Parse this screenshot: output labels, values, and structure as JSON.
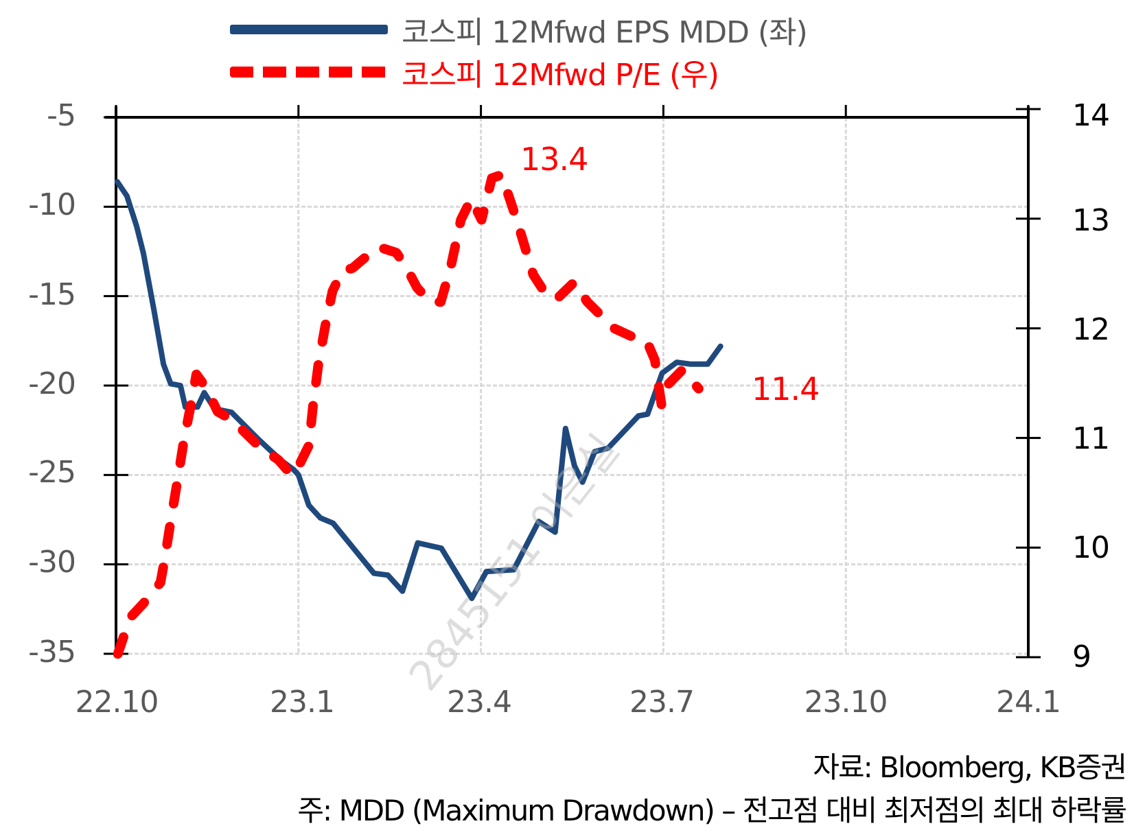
{
  "legend": {
    "series1_label": "코스피 12Mfwd EPS MDD (좌)",
    "series2_label": "코스피 12Mfwd P/E (우)"
  },
  "axes": {
    "left_ticks": [
      "-5",
      "-10",
      "-15",
      "-20",
      "-25",
      "-30",
      "-35"
    ],
    "right_ticks": [
      "14",
      "13",
      "12",
      "11",
      "10",
      "9"
    ],
    "bottom_ticks": [
      "22.10",
      "23.1",
      "23.4",
      "23.7",
      "23.10",
      "24.1"
    ]
  },
  "annotations": {
    "peak_label": "13.4",
    "last_label": "11.4"
  },
  "footnotes": {
    "source": "자료: Bloomberg, KB증권",
    "note": "주: MDD (Maximum Drawdown) – 전고점 대비 최저점의 최대 하락률"
  },
  "watermark": "2845151 이은실",
  "colors": {
    "mdd_line": "#1f497d",
    "pe_line": "#ff0000",
    "axis": "#000000",
    "grid": "#d9d9d9"
  },
  "chart_data": {
    "type": "line",
    "title": "",
    "xlabel": "",
    "ylabel": "",
    "x_ticks": [
      "22.10",
      "23.1",
      "23.4",
      "23.7",
      "23.10",
      "24.1"
    ],
    "x_unit": "months since 2022-10",
    "xlim": [
      0,
      15
    ],
    "ylim_left": [
      -35,
      -5
    ],
    "ylim_right": [
      9,
      14
    ],
    "grid": true,
    "legend_position": "top",
    "series": [
      {
        "name": "코스피 12Mfwd EPS MDD (좌)",
        "axis": "left",
        "style": "solid",
        "color": "#1f497d",
        "x": [
          0.02,
          0.18,
          0.34,
          0.45,
          0.62,
          0.78,
          0.9,
          1.06,
          1.14,
          1.34,
          1.45,
          1.62,
          1.9,
          2.34,
          2.56,
          2.76,
          2.92,
          3.0,
          3.17,
          3.36,
          3.57,
          4.24,
          4.47,
          4.71,
          4.96,
          5.35,
          5.85,
          6.09,
          6.54,
          6.95,
          7.22,
          7.39,
          7.54,
          7.67,
          7.87,
          8.09,
          8.59,
          8.74,
          8.98,
          9.22,
          9.44,
          9.73,
          9.94
        ],
        "values": [
          -8.6,
          -9.4,
          -11.1,
          -12.6,
          -15.7,
          -18.8,
          -19.9,
          -20.0,
          -21.2,
          -21.2,
          -20.4,
          -21.3,
          -21.5,
          -23.0,
          -23.7,
          -24.3,
          -24.7,
          -25.0,
          -26.7,
          -27.4,
          -27.7,
          -30.5,
          -30.6,
          -31.5,
          -28.8,
          -29.1,
          -31.9,
          -30.4,
          -30.3,
          -27.6,
          -28.2,
          -22.4,
          -24.5,
          -25.4,
          -23.7,
          -23.5,
          -21.7,
          -21.6,
          -19.3,
          -18.7,
          -18.8,
          -18.8,
          -17.8
        ]
      },
      {
        "name": "코스피 12Mfwd P/E (우)",
        "axis": "right",
        "style": "dashed",
        "color": "#ff0000",
        "x": [
          0.03,
          0.23,
          0.45,
          0.73,
          0.79,
          0.9,
          1.01,
          1.12,
          1.23,
          1.32,
          1.48,
          1.67,
          1.89,
          2.12,
          2.34,
          2.54,
          2.67,
          2.89,
          3.0,
          3.17,
          3.24,
          3.33,
          3.44,
          3.56,
          3.72,
          3.89,
          4.17,
          4.33,
          4.61,
          4.78,
          4.95,
          5.17,
          5.34,
          5.5,
          5.67,
          5.84,
          6.01,
          6.18,
          6.34,
          6.51,
          6.67,
          6.86,
          7.08,
          7.25,
          7.53,
          7.75,
          7.97,
          8.19,
          8.66,
          8.73,
          8.86,
          8.97,
          9.08,
          9.31,
          9.58
        ],
        "values": [
          9.03,
          9.36,
          9.49,
          9.68,
          9.86,
          10.24,
          10.61,
          10.99,
          11.3,
          11.58,
          11.46,
          11.24,
          11.17,
          11.05,
          10.93,
          10.85,
          10.8,
          10.66,
          10.74,
          10.93,
          11.3,
          11.68,
          12.02,
          12.34,
          12.52,
          12.55,
          12.68,
          12.74,
          12.69,
          12.55,
          12.37,
          12.24,
          12.24,
          12.55,
          12.99,
          13.18,
          12.99,
          13.37,
          13.4,
          13.12,
          12.84,
          12.49,
          12.3,
          12.27,
          12.42,
          12.24,
          12.12,
          12.0,
          11.88,
          11.88,
          11.71,
          11.3,
          11.49,
          11.62,
          11.45
        ]
      }
    ],
    "annotations": [
      {
        "text": "13.4",
        "series": "코스피 12Mfwd P/E (우)",
        "note": "peak"
      },
      {
        "text": "11.4",
        "series": "코스피 12Mfwd P/E (우)",
        "note": "latest"
      }
    ]
  }
}
